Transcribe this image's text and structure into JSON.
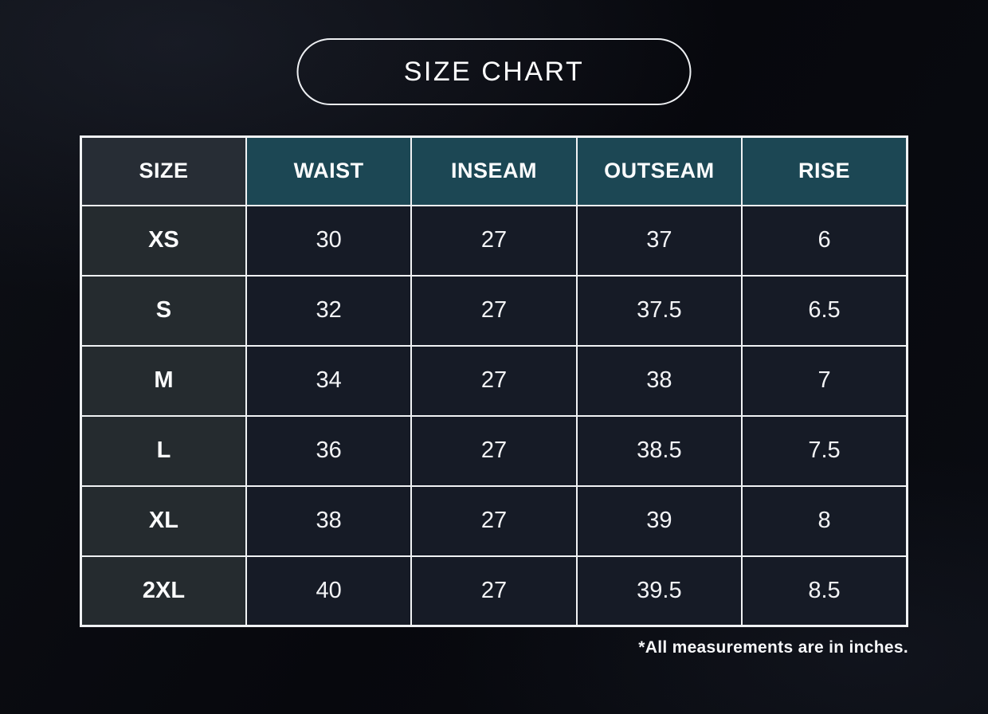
{
  "title": {
    "label": "SIZE CHART"
  },
  "table": {
    "headers": [
      "SIZE",
      "WAIST",
      "INSEAM",
      "OUTSEAM",
      "RISE"
    ],
    "rows": [
      {
        "cells": [
          "XS",
          "30",
          "27",
          "37",
          "6"
        ]
      },
      {
        "cells": [
          "S",
          "32",
          "27",
          "37.5",
          "6.5"
        ]
      },
      {
        "cells": [
          "M",
          "34",
          "27",
          "38",
          "7"
        ]
      },
      {
        "cells": [
          "L",
          "36",
          "27",
          "38.5",
          "7.5"
        ]
      },
      {
        "cells": [
          "XL",
          "38",
          "27",
          "39",
          "8"
        ]
      },
      {
        "cells": [
          "2XL",
          "40",
          "27",
          "39.5",
          "8.5"
        ]
      }
    ],
    "footnote": "*All measurements are in inches."
  },
  "colors": {
    "header_accent_teal": "#1c4754",
    "header_size_bg": "#272d35",
    "row_label_bg": "#252b2f",
    "data_cell_bg": "#161b26",
    "border": "#f0f2f4",
    "text": "#fafafa",
    "background": "#0a0b10"
  },
  "chart_data": {
    "type": "table",
    "title": "SIZE CHART",
    "columns": [
      "SIZE",
      "WAIST",
      "INSEAM",
      "OUTSEAM",
      "RISE"
    ],
    "rows": [
      [
        "XS",
        30,
        27,
        37,
        6
      ],
      [
        "S",
        32,
        27,
        37.5,
        6.5
      ],
      [
        "M",
        34,
        27,
        38,
        7
      ],
      [
        "L",
        36,
        27,
        38.5,
        7.5
      ],
      [
        "XL",
        38,
        27,
        39,
        8
      ],
      [
        "2XL",
        40,
        27,
        39.5,
        8.5
      ]
    ],
    "units": "inches",
    "note": "*All measurements are in inches."
  }
}
